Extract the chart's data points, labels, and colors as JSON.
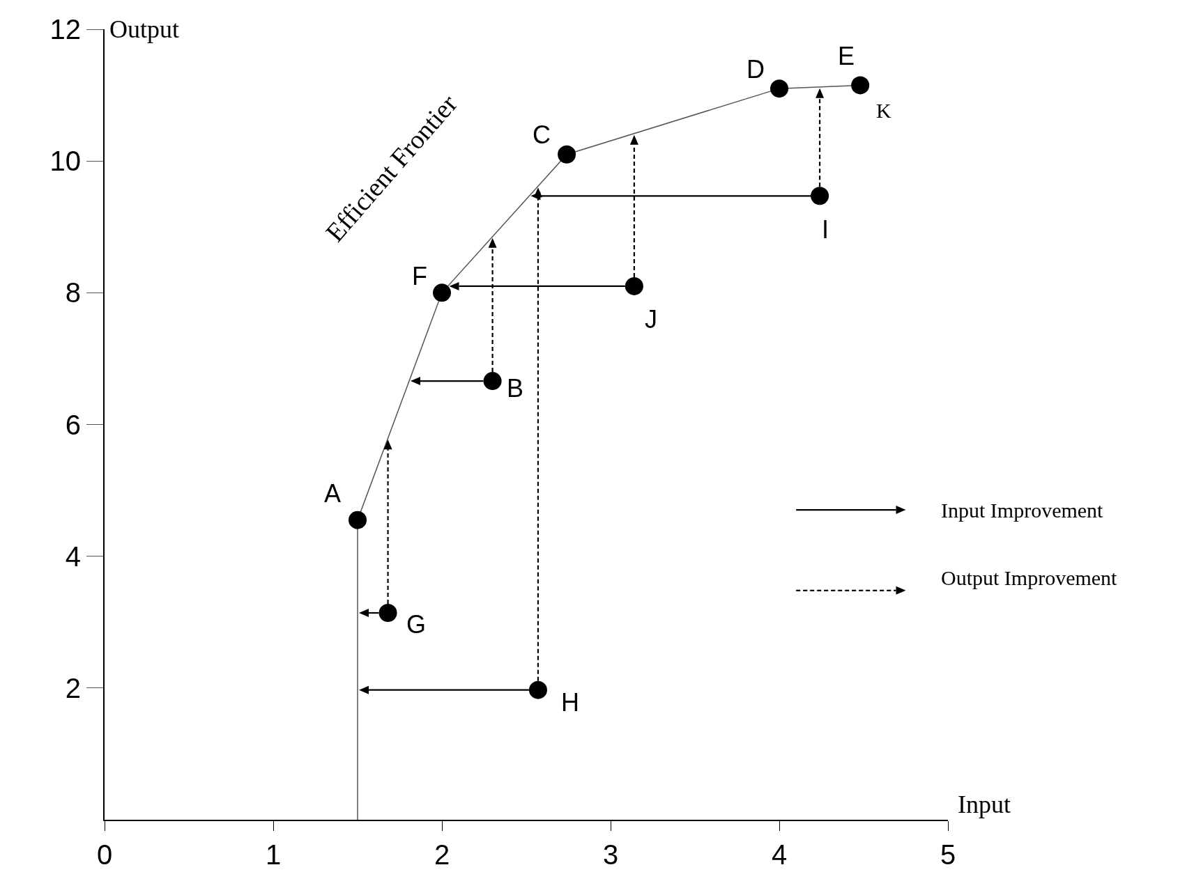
{
  "chart_data": {
    "type": "scatter",
    "xlabel": "Input",
    "ylabel": "Output",
    "xlim": [
      0,
      5
    ],
    "ylim": [
      0,
      12
    ],
    "xticks": [
      0,
      1,
      2,
      3,
      4,
      5
    ],
    "yticks": [
      2,
      4,
      6,
      8,
      10,
      12
    ],
    "grid": false,
    "series": [
      {
        "type": "line",
        "color": "#555555",
        "line_style": "solid",
        "x": [
          1.5,
          1.5,
          2.0,
          2.74,
          4.0,
          4.48
        ],
        "values": [
          0,
          4.55,
          8.0,
          10.1,
          11.1,
          11.15
        ]
      },
      {
        "color": "#000000",
        "marker": "circle",
        "x": [
          1.5,
          2.0,
          2.74,
          4.0,
          4.48,
          2.3,
          3.14,
          4.24,
          1.68,
          2.57
        ],
        "values": [
          4.55,
          8.0,
          10.1,
          11.1,
          11.15,
          6.66,
          8.1,
          9.47,
          3.14,
          1.97
        ]
      }
    ],
    "annotations": [
      {
        "text": "A",
        "x": 1.5,
        "y": 4.55
      },
      {
        "text": "F",
        "x": 2.0,
        "y": 8.0
      },
      {
        "text": "C",
        "x": 2.74,
        "y": 10.1
      },
      {
        "text": "D",
        "x": 4.0,
        "y": 11.1
      },
      {
        "text": "E",
        "x": 4.48,
        "y": 11.15
      },
      {
        "text": "K",
        "x": 4.48,
        "y": 11.15
      },
      {
        "text": "B",
        "x": 2.3,
        "y": 6.66
      },
      {
        "text": "J",
        "x": 3.14,
        "y": 8.1
      },
      {
        "text": "I",
        "x": 4.24,
        "y": 9.47
      },
      {
        "text": "G",
        "x": 1.68,
        "y": 3.14
      },
      {
        "text": "H",
        "x": 2.57,
        "y": 1.97
      },
      {
        "text": "Efficient Frontier",
        "x": 2.37,
        "y": 9.05
      },
      "Input Improvement",
      "Output Improvement"
    ]
  }
}
